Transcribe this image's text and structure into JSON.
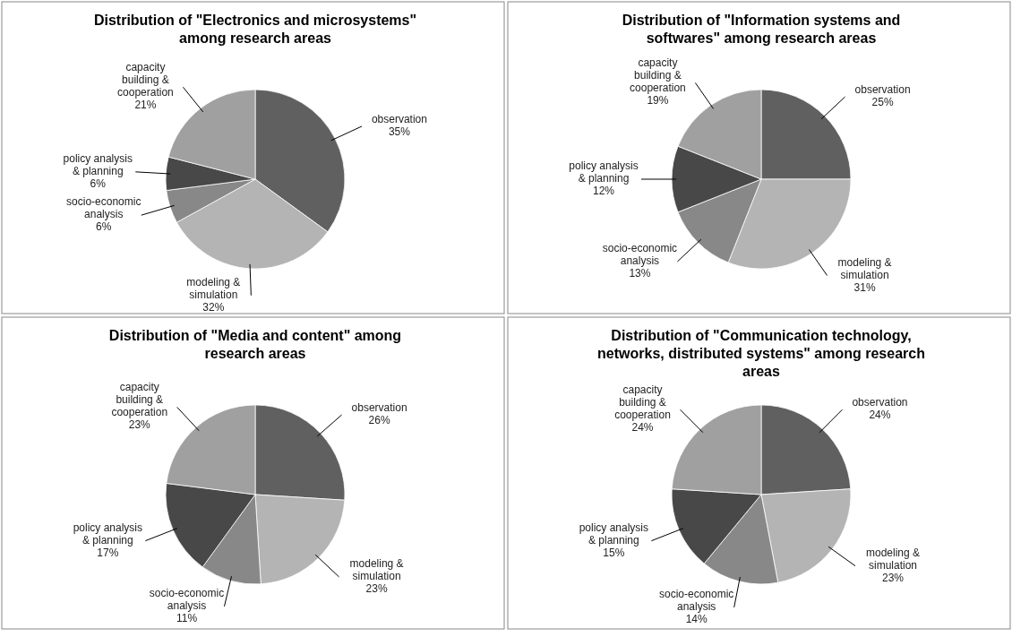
{
  "chart_data": [
    {
      "type": "pie",
      "title": "Distribution of \"Electronics and microsystems\" among research areas",
      "categories": [
        "observation",
        "modeling & simulation",
        "socio-economic analysis",
        "policy analysis & planning",
        "capacity building & cooperation"
      ],
      "values": [
        35,
        32,
        6,
        6,
        21
      ],
      "value_labels": [
        "35%",
        "32%",
        "6%",
        "6%",
        "21%"
      ],
      "colors": [
        "#606060",
        "#b4b4b4",
        "#888888",
        "#484848",
        "#a0a0a0"
      ]
    },
    {
      "type": "pie",
      "title": "Distribution of \"Information systems and softwares\" among research areas",
      "categories": [
        "observation",
        "modeling & simulation",
        "socio-economic analysis",
        "policy analysis & planning",
        "capacity building & cooperation"
      ],
      "values": [
        25,
        31,
        13,
        12,
        19
      ],
      "value_labels": [
        "25%",
        "31%",
        "13%",
        "12%",
        "19%"
      ],
      "colors": [
        "#606060",
        "#b4b4b4",
        "#888888",
        "#484848",
        "#a0a0a0"
      ]
    },
    {
      "type": "pie",
      "title": "Distribution of \"Media and content\" among research areas",
      "categories": [
        "observation",
        "modeling & simulation",
        "socio-economic analysis",
        "policy analysis & planning",
        "capacity building & cooperation"
      ],
      "values": [
        26,
        23,
        11,
        17,
        23
      ],
      "value_labels": [
        "26%",
        "23%",
        "11%",
        "17%",
        "23%"
      ],
      "colors": [
        "#606060",
        "#b4b4b4",
        "#888888",
        "#484848",
        "#a0a0a0"
      ]
    },
    {
      "type": "pie",
      "title": "Distribution of \"Communication technology, networks, distributed systems\" among research areas",
      "categories": [
        "observation",
        "modeling & simulation",
        "socio-economic analysis",
        "policy analysis & planning",
        "capacity building & cooperation"
      ],
      "values": [
        24,
        23,
        14,
        15,
        24
      ],
      "value_labels": [
        "24%",
        "23%",
        "14%",
        "15%",
        "24%"
      ],
      "colors": [
        "#606060",
        "#b4b4b4",
        "#888888",
        "#484848",
        "#a0a0a0"
      ]
    }
  ]
}
